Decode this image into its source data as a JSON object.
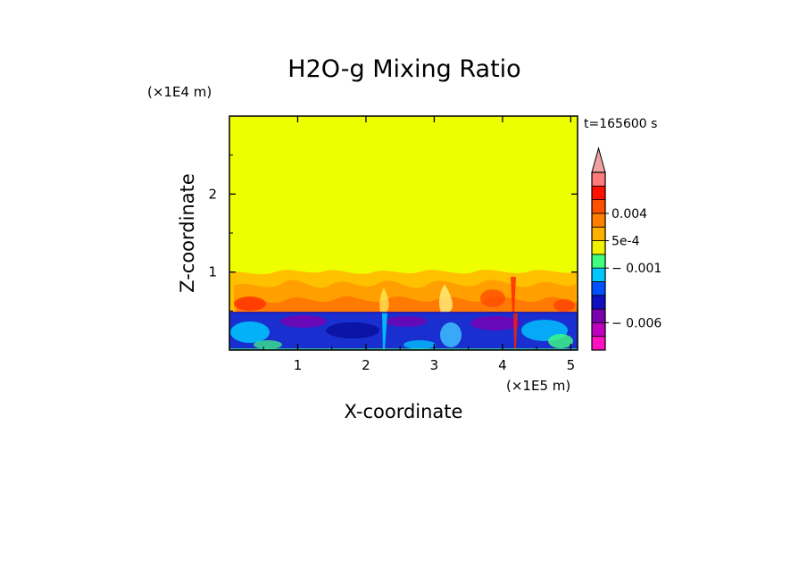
{
  "chart_data": {
    "type": "heatmap",
    "title": "H2O-g Mixing Ratio",
    "xlabel": "X-coordinate",
    "ylabel": "Z-coordinate",
    "x_unit": "(×1E5 m)",
    "z_unit": "(×1E4 m)",
    "time_label": "t=165600 s",
    "xlim": [
      0,
      5.1
    ],
    "zlim": [
      0,
      3.0
    ],
    "x_ticks": [
      1,
      2,
      3,
      4,
      5
    ],
    "x_tick_labels": [
      "1",
      "2",
      "3",
      "4",
      "5"
    ],
    "z_ticks": [
      1,
      2
    ],
    "z_tick_labels": [
      "1",
      "2"
    ],
    "background_level_color": "#eeff00",
    "layers": [
      {
        "name": "upper-orange-layer",
        "z_top": 1.0,
        "z_bottom": 0.5,
        "color": "#ffc000"
      },
      {
        "name": "lower-blue-layer",
        "z_top": 0.5,
        "z_bottom": 0.0,
        "color": "#1a2fd0"
      }
    ],
    "colorbar": {
      "colors": [
        "#ff10c0",
        "#c000c0",
        "#7a00b0",
        "#1010c0",
        "#0050ff",
        "#00c8ff",
        "#40ff80",
        "#f0f000",
        "#ffb000",
        "#ff8000",
        "#ff5000",
        "#ff1000",
        "#ff7a7a"
      ],
      "extend_color": "#f0a0a0",
      "labels": [
        {
          "text": "0.004",
          "at_index": 10
        },
        {
          "text": "5e-4",
          "at_index": 8
        },
        {
          "text": "− 0.001",
          "at_index": 6
        },
        {
          "text": "− 0.006",
          "at_index": 2
        }
      ]
    }
  }
}
